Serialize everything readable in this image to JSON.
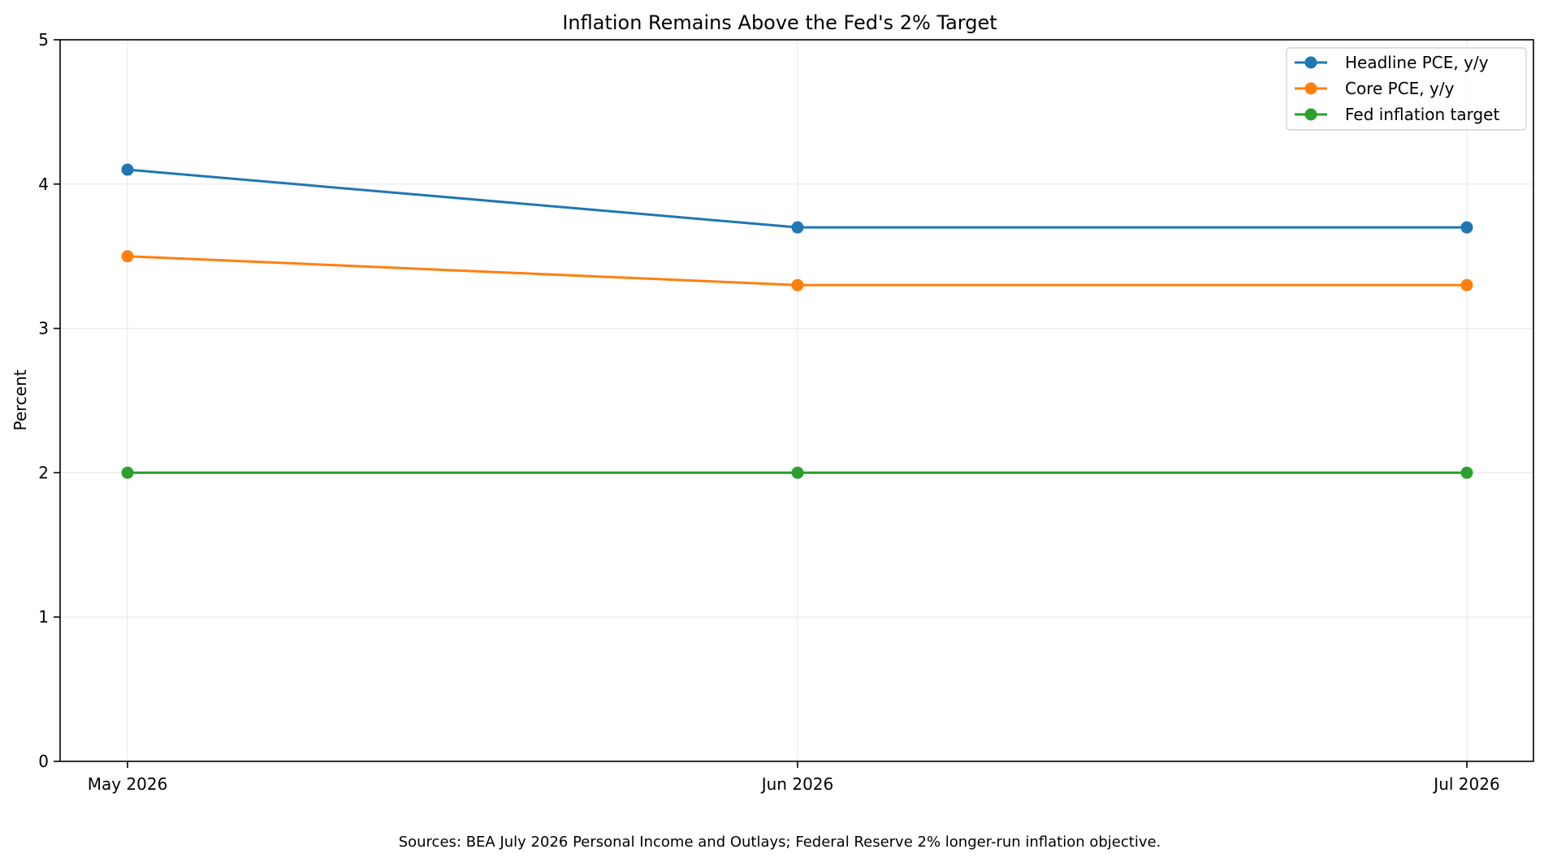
{
  "chart_data": {
    "type": "line",
    "title": "Inflation Remains Above the Fed's 2% Target",
    "xlabel": "",
    "ylabel": "Percent",
    "categories": [
      "May 2026",
      "Jun 2026",
      "Jul 2026"
    ],
    "ylim": [
      0,
      5
    ],
    "yticks": [
      0,
      1,
      2,
      3,
      4,
      5
    ],
    "grid": true,
    "legend_position": "top-right",
    "series": [
      {
        "name": "Headline PCE, y/y",
        "values": [
          4.1,
          3.7,
          3.7
        ],
        "color": "#1f77b4"
      },
      {
        "name": "Core PCE, y/y",
        "values": [
          3.5,
          3.3,
          3.3
        ],
        "color": "#ff7f0e"
      },
      {
        "name": "Fed inflation target",
        "values": [
          2.0,
          2.0,
          2.0
        ],
        "color": "#2ca02c"
      }
    ]
  },
  "footnote": "Sources: BEA July 2026 Personal Income and Outlays; Federal Reserve 2% longer-run inflation objective."
}
